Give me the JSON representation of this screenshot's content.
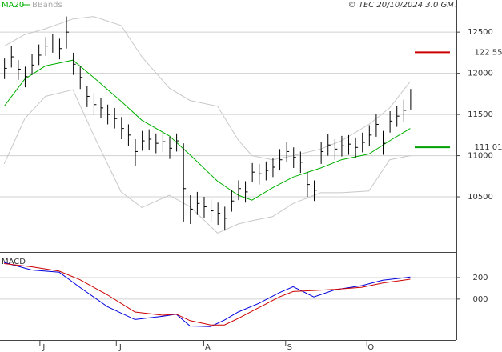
{
  "chart_data": [
    {
      "type": "ohlc",
      "source": "© TEC 20/10/2024 3:0 GMT",
      "xlim": [
        -0.6,
        65.7
      ],
      "ylim": [
        9840,
        12890
      ],
      "yticks": [
        10500,
        11000,
        11500,
        12000,
        12500
      ],
      "grid": true,
      "bar_color": "#000000",
      "high": [
        12180,
        12330,
        12160,
        12080,
        12230,
        12350,
        12440,
        12480,
        12420,
        12690,
        12250,
        12080,
        11850,
        11760,
        11700,
        11620,
        11580,
        11470,
        11380,
        11200,
        11300,
        11320,
        11270,
        11280,
        11230,
        11270,
        11150,
        10520,
        10560,
        10500,
        10470,
        10430,
        10380,
        10580,
        10700,
        10690,
        10910,
        10900,
        10930,
        10970,
        11080,
        11170,
        11100,
        11050,
        10800,
        10700,
        11170,
        11260,
        11200,
        11240,
        11250,
        11220,
        11280,
        11370,
        11500,
        11300,
        11540,
        11600,
        11680,
        11810
      ],
      "low": [
        11930,
        12070,
        11920,
        11830,
        11980,
        12100,
        12210,
        12250,
        12170,
        12300,
        11980,
        11810,
        11590,
        11490,
        11460,
        11380,
        11330,
        11200,
        11120,
        10880,
        11060,
        11070,
        11030,
        11040,
        10960,
        11050,
        10200,
        10170,
        10280,
        10240,
        10190,
        10160,
        10090,
        10320,
        10460,
        10430,
        10680,
        10650,
        10700,
        10740,
        10820,
        10920,
        10850,
        10790,
        10500,
        10450,
        10900,
        11000,
        10950,
        10990,
        11010,
        10970,
        11040,
        11120,
        11230,
        11010,
        11280,
        11350,
        11410,
        11560
      ],
      "close": [
        12060,
        12200,
        12050,
        11960,
        12100,
        12220,
        12330,
        12380,
        12300,
        12500,
        12110,
        11950,
        11720,
        11620,
        11580,
        11500,
        11450,
        11330,
        11250,
        11050,
        11180,
        11200,
        11150,
        11170,
        11090,
        11180,
        10600,
        10350,
        10420,
        10380,
        10330,
        10300,
        10240,
        10450,
        10600,
        10560,
        10800,
        10780,
        10820,
        10860,
        10950,
        11050,
        10980,
        10920,
        10650,
        10580,
        11050,
        11130,
        11080,
        11120,
        11140,
        11100,
        11160,
        11250,
        11380,
        11150,
        11420,
        11480,
        11550,
        11700
      ],
      "ma": {
        "name": "MA20",
        "color": "#00b000",
        "x": [
          0,
          3,
          6,
          10,
          13,
          17,
          20,
          24,
          27,
          31,
          34,
          36,
          39,
          42,
          46,
          49,
          53,
          56,
          59
        ],
        "values": [
          11600,
          11930,
          12090,
          12160,
          11950,
          11660,
          11430,
          11240,
          11010,
          10690,
          10520,
          10460,
          10610,
          10740,
          10850,
          10950,
          11020,
          11180,
          11330
        ]
      },
      "bands": {
        "name": "BBands",
        "color": "#c8c8c8",
        "x": [
          0,
          3,
          6,
          10,
          13,
          17,
          20,
          24,
          27,
          31,
          34,
          36,
          39,
          42,
          46,
          49,
          53,
          56,
          59
        ],
        "upper": [
          12330,
          12470,
          12540,
          12660,
          12690,
          12580,
          12200,
          11820,
          11670,
          11600,
          11190,
          11000,
          10950,
          11000,
          11080,
          11180,
          11380,
          11580,
          11900
        ],
        "lower": [
          10900,
          11450,
          11720,
          11800,
          11250,
          10560,
          10370,
          10520,
          10380,
          10060,
          10170,
          10210,
          10260,
          10420,
          10550,
          10550,
          10570,
          10950,
          11000
        ]
      },
      "markers": [
        {
          "value": 12255,
          "label": "122 55",
          "color": "#cc0000"
        },
        {
          "value": 11101,
          "label": "111 01",
          "color": "#00a000"
        }
      ]
    },
    {
      "type": "line",
      "title": "MACD",
      "xlim": [
        -0.6,
        65.7
      ],
      "ylim": [
        -380,
        430
      ],
      "yticks": [
        200,
        {
          "value": 0,
          "label": "000"
        }
      ],
      "xticks": [
        {
          "value": 5.2,
          "label": "J"
        },
        {
          "value": 16.3,
          "label": "J"
        },
        {
          "value": 29,
          "label": "A"
        },
        {
          "value": 40.9,
          "label": "S"
        },
        {
          "value": 52.7,
          "label": "O"
        }
      ],
      "grid": true,
      "x": [
        0,
        4,
        8,
        11,
        15,
        19,
        23,
        25,
        27,
        30,
        32,
        34,
        37,
        40,
        42,
        45,
        48,
        52,
        55,
        59
      ],
      "series": [
        {
          "color": "#0000dd",
          "values": [
            340,
            270,
            250,
            110,
            -70,
            -190,
            -160,
            -140,
            -250,
            -255,
            -195,
            -120,
            -40,
            60,
            115,
            20,
            85,
            125,
            175,
            205
          ]
        },
        {
          "color": "#cc0000",
          "values": [
            330,
            300,
            260,
            180,
            40,
            -120,
            -150,
            -140,
            -200,
            -240,
            -240,
            -180,
            -80,
            20,
            70,
            80,
            90,
            110,
            150,
            185
          ]
        }
      ]
    }
  ]
}
